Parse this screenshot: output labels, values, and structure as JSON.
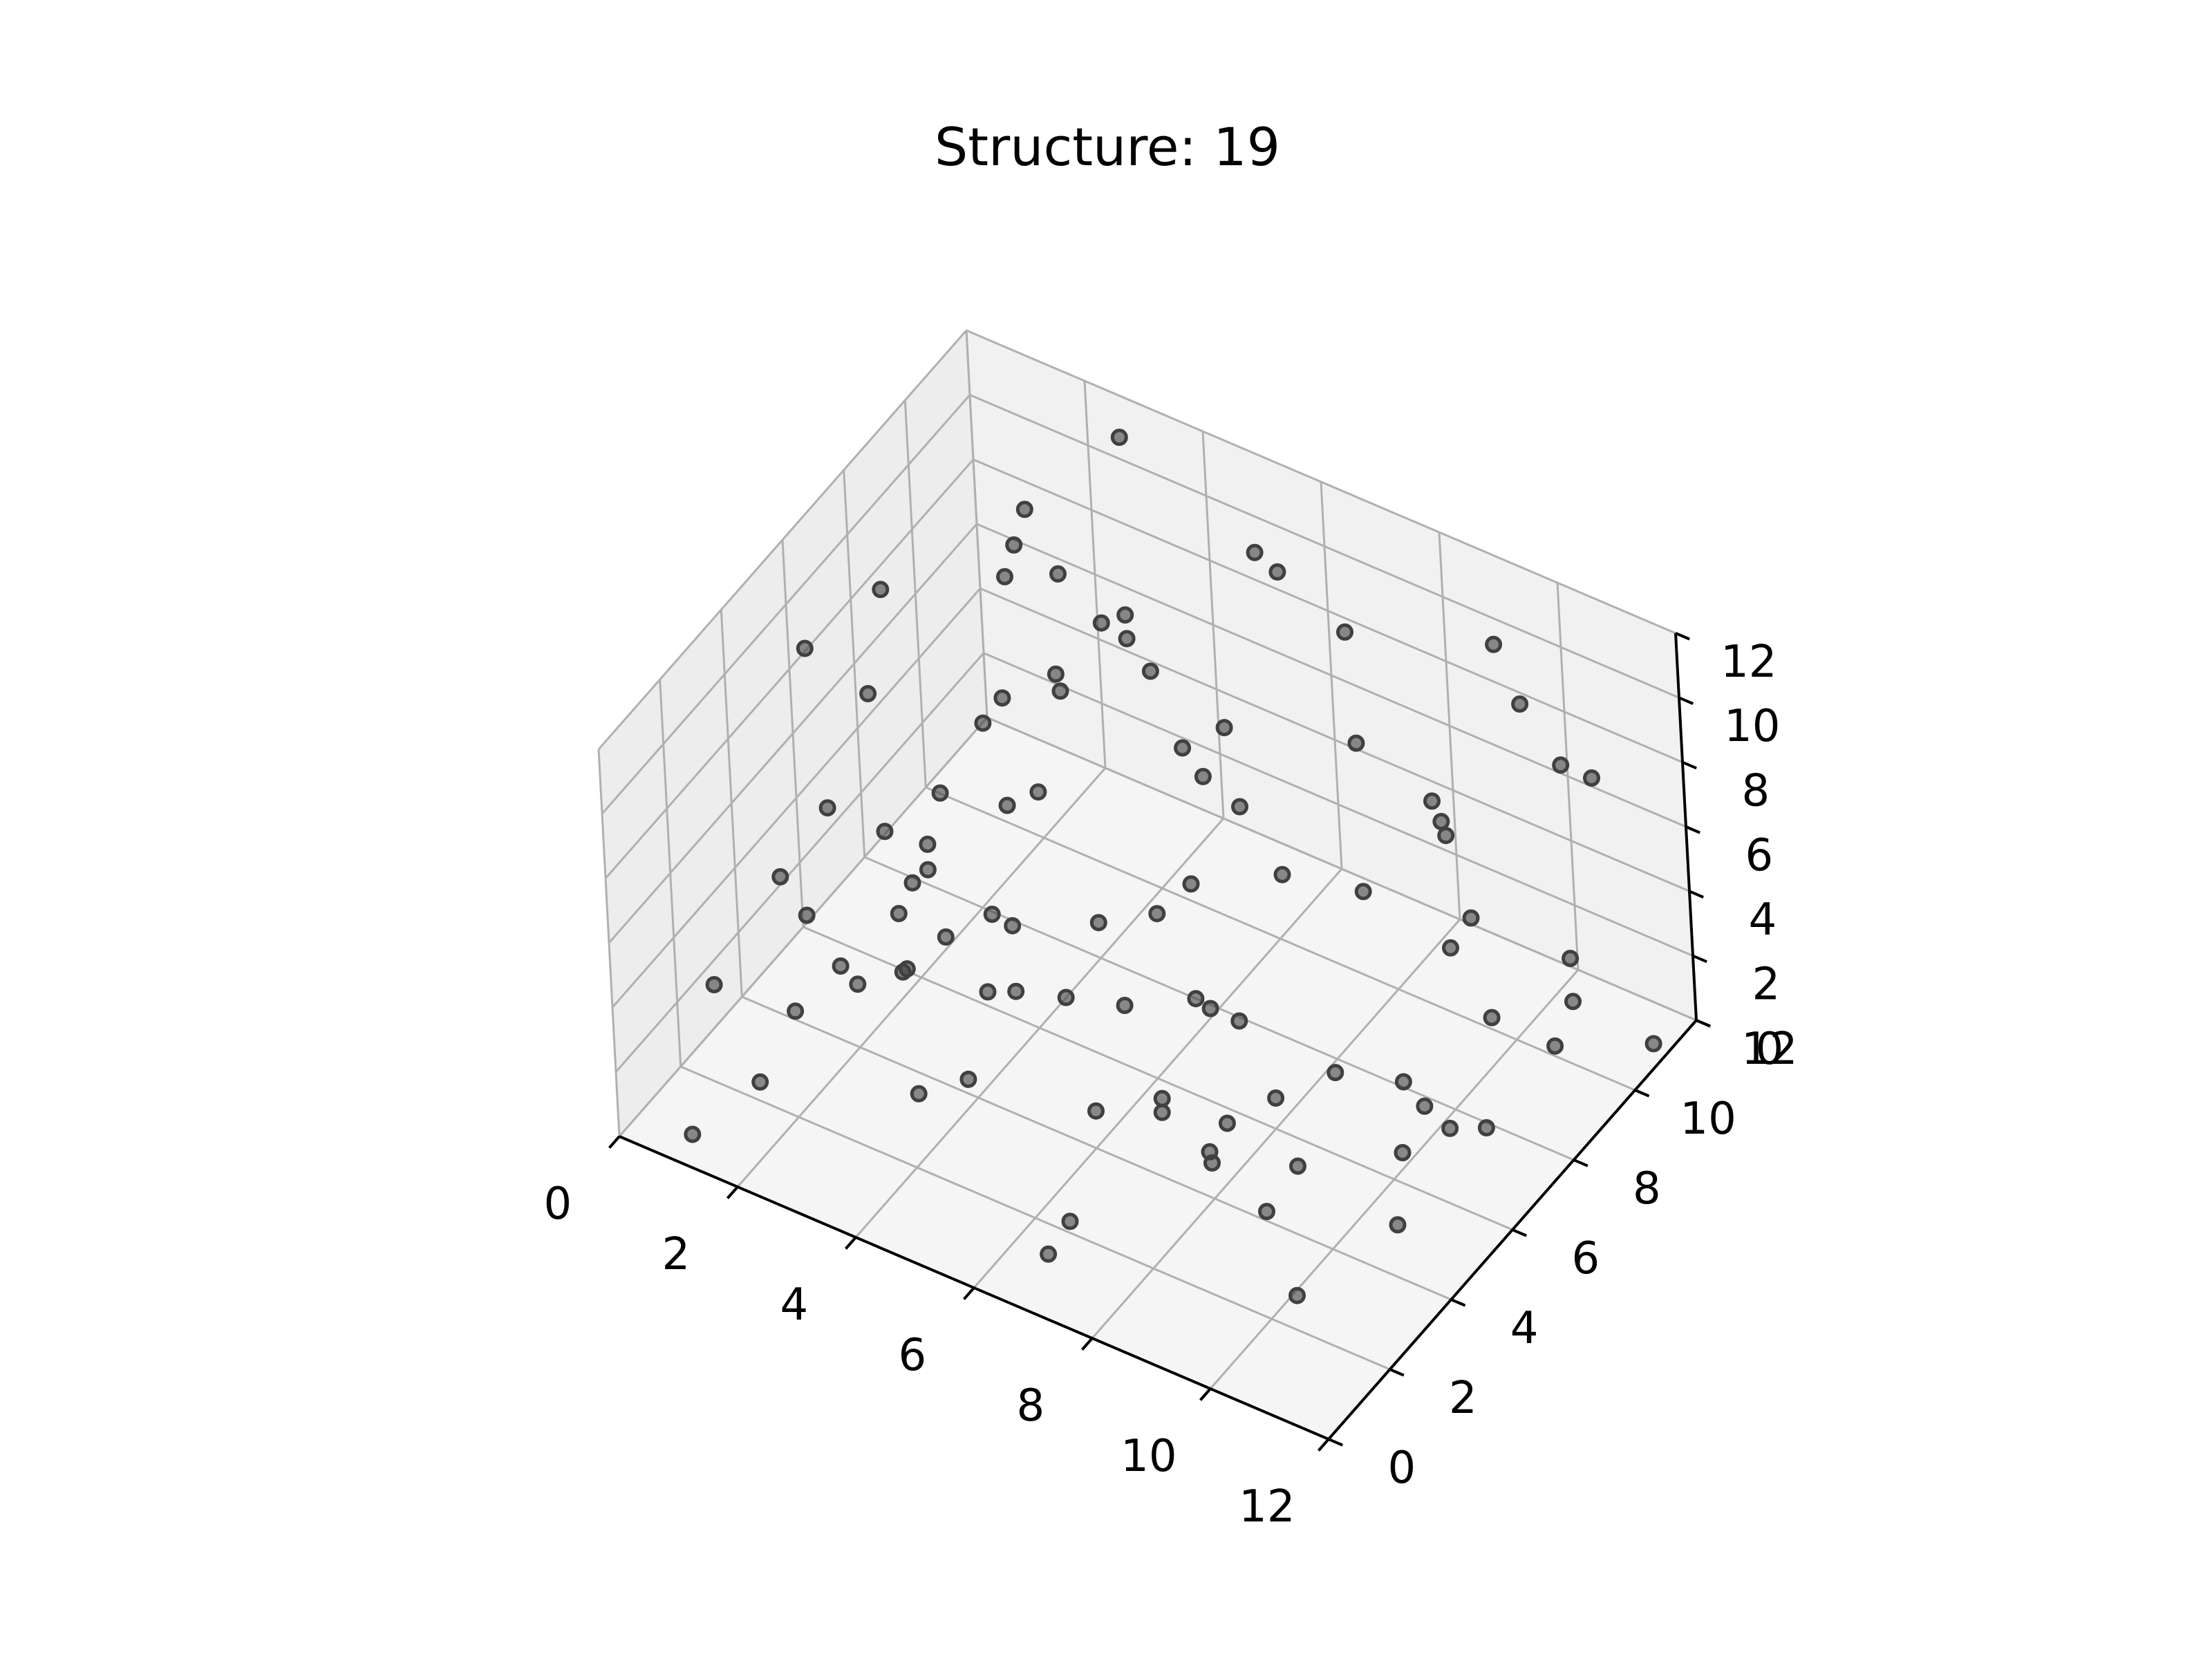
{
  "chart_data": {
    "type": "scatter",
    "title": "Structure: 19",
    "xlabel": "",
    "ylabel": "",
    "zlabel": "",
    "xlim": [
      0,
      12
    ],
    "ylim": [
      0,
      12
    ],
    "zlim": [
      0,
      12
    ],
    "xticks": [
      "0",
      "2",
      "4",
      "6",
      "8",
      "10",
      "12"
    ],
    "yticks": [
      "0",
      "2",
      "4",
      "6",
      "8",
      "10",
      "12"
    ],
    "zticks": [
      "0",
      "2",
      "4",
      "6",
      "8",
      "10",
      "12"
    ],
    "grid": true,
    "point_color": "#404040",
    "points": [
      [
        0.9,
        10.9,
        2.5
      ],
      [
        2.1,
        2.4,
        5.9
      ],
      [
        8.0,
        9.1,
        8.6
      ],
      [
        9.8,
        6.8,
        2.0
      ],
      [
        2.8,
        7.8,
        11.1
      ],
      [
        11.8,
        11.0,
        0.2
      ],
      [
        4.6,
        7.5,
        11.4
      ],
      [
        4.1,
        0.3,
        7.6
      ],
      [
        9.3,
        2.2,
        5.3
      ],
      [
        6.7,
        2.8,
        3.0
      ],
      [
        6.4,
        9.8,
        11.9
      ],
      [
        11.8,
        4.6,
        4.5
      ],
      [
        8.3,
        10.8,
        5.2
      ],
      [
        2.4,
        4.7,
        3.7
      ],
      [
        5.8,
        6.8,
        11.6
      ],
      [
        8.7,
        4.8,
        2.8
      ],
      [
        8.1,
        3.8,
        1.4
      ],
      [
        7.9,
        2.7,
        4.0
      ],
      [
        3.3,
        6.0,
        8.9
      ],
      [
        8.8,
        2.5,
        3.7
      ],
      [
        6.8,
        7.2,
        10.2
      ],
      [
        1.2,
        8.3,
        2.6
      ],
      [
        6.9,
        4.5,
        1.7
      ],
      [
        2.2,
        9.2,
        10.1
      ],
      [
        1.7,
        1.4,
        1.5
      ],
      [
        6.9,
        5.7,
        3.5
      ],
      [
        11.1,
        5.1,
        4.1
      ],
      [
        10.5,
        10.9,
        0.6
      ],
      [
        4.8,
        0.6,
        8.3
      ],
      [
        7.4,
        10.0,
        10.6
      ],
      [
        6.7,
        1.1,
        0.4
      ],
      [
        3.0,
        6.5,
        2.2
      ],
      [
        7.6,
        4.5,
        8.9
      ],
      [
        2.1,
        6.2,
        3.2
      ],
      [
        5.0,
        0.4,
        4.8
      ],
      [
        7.5,
        0.4,
        2.8
      ],
      [
        10.6,
        3.3,
        6.7
      ],
      [
        9.0,
        3.8,
        0.6
      ],
      [
        3.9,
        3.9,
        0.6
      ],
      [
        10.8,
        4.1,
        11.6
      ],
      [
        5.1,
        6.7,
        0.8
      ],
      [
        1.1,
        0.3,
        0.6
      ],
      [
        11.1,
        6.2,
        11.3
      ],
      [
        5.8,
        6.6,
        4.3
      ],
      [
        6.4,
        2.6,
        6.5
      ],
      [
        3.6,
        2.6,
        5.1
      ],
      [
        1.8,
        11.1,
        3.2
      ],
      [
        10.9,
        10.2,
        9.0
      ],
      [
        3.0,
        11.2,
        11.9
      ],
      [
        10.8,
        7.5,
        0.6
      ],
      [
        11.0,
        10.0,
        3.3
      ],
      [
        0.3,
        8.4,
        8.1
      ],
      [
        5.1,
        8.9,
        6.4
      ],
      [
        10.7,
        9.4,
        11.6
      ],
      [
        0.1,
        5.2,
        2.5
      ],
      [
        5.7,
        9.5,
        4.4
      ],
      [
        4.6,
        2.2,
        7.4
      ],
      [
        10.0,
        6.3,
        0.5
      ],
      [
        6.9,
        7.0,
        1.4
      ],
      [
        1.3,
        4.2,
        11.6
      ],
      [
        10.3,
        7.5,
        9.7
      ],
      [
        2.3,
        10.1,
        5.2
      ],
      [
        9.6,
        9.5,
        4.0
      ],
      [
        4.3,
        4.8,
        4.7
      ],
      [
        1.8,
        10.3,
        9.7
      ],
      [
        1.7,
        2.6,
        2.4
      ],
      [
        1.4,
        4.6,
        1.4
      ],
      [
        1.2,
        7.3,
        0.9
      ],
      [
        3.9,
        9.5,
        8.2
      ],
      [
        9.4,
        11.0,
        10.7
      ],
      [
        5.4,
        5.5,
        4.9
      ],
      [
        10.8,
        1.4,
        2.0
      ],
      [
        5.2,
        3.2,
        5.1
      ],
      [
        1.9,
        5.0,
        9.8
      ],
      [
        8.4,
        5.9,
        8.3
      ],
      [
        3.3,
        4.1,
        7.2
      ],
      [
        10.6,
        8.2,
        3.1
      ],
      [
        8.6,
        10.6,
        1.1
      ],
      [
        3.5,
        8.2,
        11.3
      ],
      [
        11.5,
        8.5,
        2.6
      ],
      [
        1.6,
        4.1,
        7.0
      ],
      [
        6.3,
        7.2,
        1.1
      ],
      [
        7.4,
        5.4,
        11.1
      ],
      [
        4.6,
        3.4,
        4.4
      ],
      [
        3.8,
        6.7,
        6.4
      ],
      [
        11.2,
        10.6,
        8.4
      ],
      [
        1.9,
        9.1,
        1.9
      ],
      [
        11.2,
        3.9,
        1.8
      ],
      [
        9.3,
        4.3,
        1.7
      ],
      [
        0.6,
        7.6,
        1.7
      ],
      [
        5.8,
        10.2,
        11.6
      ],
      [
        4.4,
        8.6,
        10.3
      ],
      [
        0.6,
        2.1,
        2.9
      ]
    ]
  }
}
